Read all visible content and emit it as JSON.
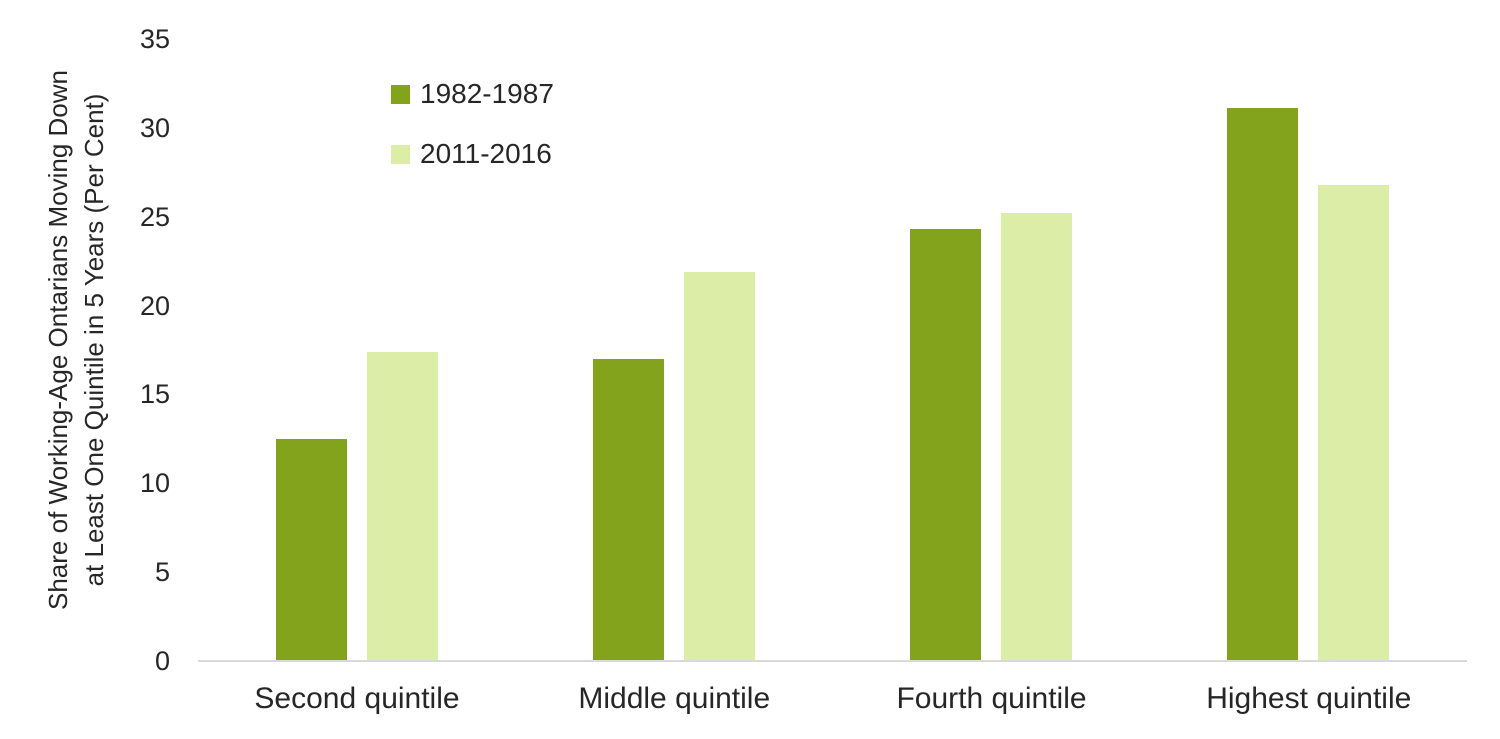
{
  "chart_data": {
    "type": "bar",
    "categories": [
      "Second quintile",
      "Middle quintile",
      "Fourth quintile",
      "Highest quintile"
    ],
    "series": [
      {
        "name": "1982-1987",
        "color": "#84A31D",
        "values": [
          12.5,
          17.0,
          24.3,
          31.1
        ]
      },
      {
        "name": "2011-2016",
        "color": "#DCEDA8",
        "values": [
          17.4,
          21.9,
          25.2,
          26.8
        ]
      }
    ],
    "title": "",
    "xlabel": "",
    "ylabel": "Share of Working-Age Ontarians Moving Down at Least One Quintile in 5 Years (Per Cent)",
    "ylabel_lines": [
      "Share of Working-Age Ontarians Moving Down",
      "at Least One Quintile in 5 Years (Per Cent)"
    ],
    "ylim": [
      0,
      35
    ],
    "yticks": [
      35,
      30,
      25,
      20,
      15,
      10,
      5,
      0
    ],
    "grid": false,
    "legend_position": "inside-top-left"
  },
  "colors": {
    "series_1982_1987": "#84A31D",
    "series_2011_2016": "#DCEDA8",
    "axis_line": "#D9D9D9",
    "text": "#262626",
    "background": "#FFFFFF"
  }
}
